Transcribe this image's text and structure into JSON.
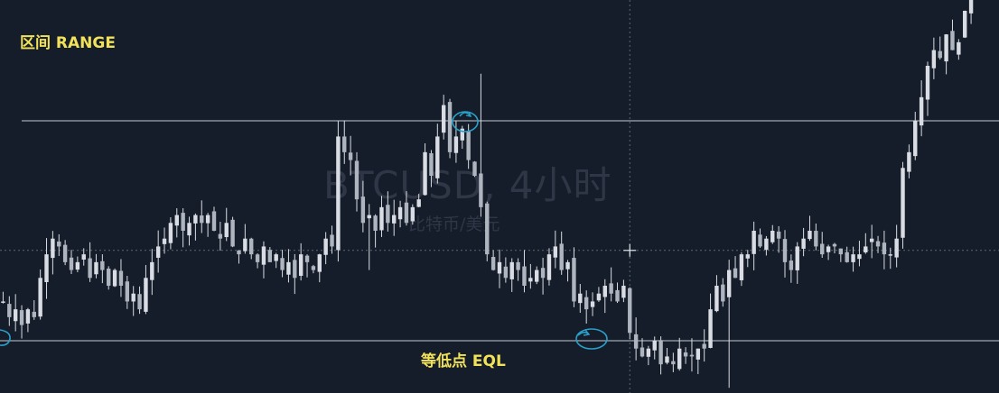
{
  "watermark": {
    "symbol": "BTCUSD, 4小时",
    "description": "比特币/美元"
  },
  "labels": {
    "range": "区间 RANGE",
    "eql": "等低点 EQL"
  },
  "colors": {
    "background": "#151c2a",
    "candle": "#d9dde3",
    "levels": "#c3ccd6",
    "labels": "#f2e25a",
    "annotation_circle": "#2aa0c8",
    "crosshair": "#5d6675"
  },
  "chart_data": {
    "type": "candlestick",
    "symbol": "BTCUSD",
    "timeframe": "4小时",
    "grid": false,
    "price_axis_visible": false,
    "levels": [
      {
        "name": "区间 RANGE",
        "kind": "range high",
        "y": 26
      },
      {
        "name": "等低点 EQL",
        "kind": "equal lows",
        "y": -2
      }
    ],
    "crosshair": {
      "x": 101,
      "y": 9.5
    },
    "series": [
      {
        "name": "price",
        "values": [
          3,
          1,
          2,
          0,
          2,
          1,
          6,
          9,
          11,
          10,
          8,
          7,
          8,
          9,
          6,
          8,
          7,
          5,
          7,
          5,
          3,
          4,
          2,
          6,
          8,
          10,
          11,
          13,
          14,
          12,
          13,
          14,
          13,
          14,
          12,
          11,
          13,
          10,
          9,
          11,
          9,
          8,
          10,
          8,
          9,
          7,
          8,
          6,
          9,
          8,
          7,
          9,
          11,
          10,
          24,
          22,
          21,
          16,
          13,
          14,
          12,
          15,
          13,
          14,
          15,
          13,
          15,
          16,
          22,
          19,
          24,
          28,
          22,
          24,
          25,
          21,
          19,
          15,
          9,
          7,
          8,
          6,
          8,
          7,
          5,
          6,
          7,
          6,
          9,
          10,
          7,
          8,
          3,
          4,
          2,
          3,
          4,
          5,
          4,
          3,
          5,
          -1,
          -3,
          -4,
          -3,
          -2,
          -5,
          -4,
          -5,
          -3,
          -4,
          -4,
          -3,
          -3,
          2,
          5,
          3,
          7,
          6,
          9,
          9,
          12,
          10,
          11,
          12,
          11,
          8,
          7,
          10,
          11,
          12,
          10,
          9,
          10,
          10,
          9,
          8,
          9,
          9,
          10,
          11,
          10,
          9,
          9,
          11,
          20,
          22,
          26,
          29,
          33,
          35,
          34,
          37,
          35,
          36,
          40,
          46,
          45,
          47,
          49,
          52
        ]
      }
    ]
  }
}
